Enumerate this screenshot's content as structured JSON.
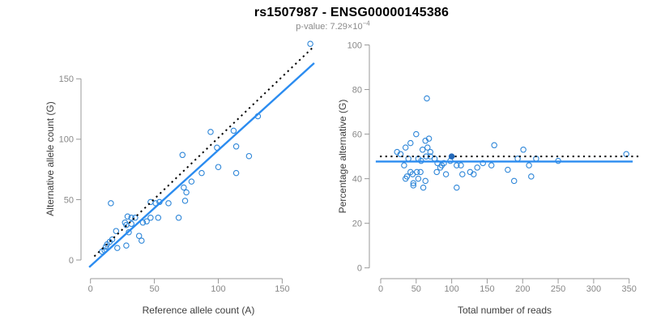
{
  "header": {
    "title": "rs1507987 - ENSG00000145386",
    "subtitle_text": "p-value: 7.29×10",
    "subtitle_exponent": "−4"
  },
  "colors": {
    "point": "#2e86d8",
    "fit_line": "#2b8cf0",
    "identity_line": "#000000",
    "axis": "#999999",
    "tick_label": "#878787",
    "axis_title": "#3d3d3d",
    "subtitle": "#8a8a8a",
    "highlight_point": "#2468b8"
  },
  "chart_data": [
    {
      "type": "scatter",
      "name": "reference-vs-alternative-counts",
      "xlabel": "Reference allele count (A)",
      "ylabel": "Alternative allele count (G)",
      "xticks": [
        0,
        50,
        100,
        150
      ],
      "yticks": [
        0,
        50,
        100,
        150
      ],
      "xlim": [
        0,
        175
      ],
      "ylim": [
        0,
        180
      ],
      "grid": false,
      "legend": null,
      "points": [
        [
          9,
          7
        ],
        [
          11,
          8
        ],
        [
          12,
          11
        ],
        [
          13,
          13
        ],
        [
          15,
          15
        ],
        [
          17,
          17
        ],
        [
          21,
          10
        ],
        [
          28,
          12
        ],
        [
          38,
          20
        ],
        [
          40,
          16
        ],
        [
          20,
          24
        ],
        [
          30,
          23
        ],
        [
          29,
          36
        ],
        [
          32,
          35
        ],
        [
          35,
          35
        ],
        [
          27,
          31
        ],
        [
          28,
          29
        ],
        [
          32,
          30
        ],
        [
          41,
          31
        ],
        [
          44,
          32
        ],
        [
          47,
          35
        ],
        [
          53,
          35
        ],
        [
          69,
          35
        ],
        [
          16,
          47
        ],
        [
          47,
          48
        ],
        [
          51,
          47
        ],
        [
          54,
          48
        ],
        [
          61,
          47
        ],
        [
          73,
          60
        ],
        [
          75,
          56
        ],
        [
          74,
          49
        ],
        [
          79,
          65
        ],
        [
          72,
          87
        ],
        [
          87,
          72
        ],
        [
          94,
          106
        ],
        [
          99,
          93
        ],
        [
          100,
          77
        ],
        [
          112,
          107
        ],
        [
          114,
          94
        ],
        [
          114,
          72
        ],
        [
          124,
          86
        ],
        [
          131,
          119
        ],
        [
          172,
          179
        ]
      ],
      "highlight_point": null,
      "lines": [
        {
          "name": "identity-line",
          "style": "dotted",
          "color": "#000000",
          "points": [
            [
              3,
              3
            ],
            [
              174,
              176
            ]
          ]
        },
        {
          "name": "fit-line",
          "style": "solid",
          "color": "#2b8cf0",
          "points": [
            [
              -1,
              -6
            ],
            [
              175,
              163
            ]
          ]
        }
      ]
    },
    {
      "type": "scatter",
      "name": "total-reads-vs-percentage",
      "xlabel": "Total number of reads",
      "ylabel": "Percentage alternative (G)",
      "xticks": [
        0,
        50,
        100,
        150,
        200,
        250,
        300,
        350
      ],
      "yticks": [
        0,
        20,
        40,
        60,
        80,
        100
      ],
      "xlim": [
        0,
        363
      ],
      "ylim": [
        0,
        100
      ],
      "grid": false,
      "legend": null,
      "points": [
        [
          23,
          52
        ],
        [
          28,
          51
        ],
        [
          33,
          46
        ],
        [
          35,
          54
        ],
        [
          35,
          40
        ],
        [
          37,
          41
        ],
        [
          39,
          49
        ],
        [
          42,
          56
        ],
        [
          42,
          43
        ],
        [
          45,
          42
        ],
        [
          46,
          38
        ],
        [
          46,
          37
        ],
        [
          50,
          60
        ],
        [
          51,
          43
        ],
        [
          53,
          49
        ],
        [
          53,
          40
        ],
        [
          56,
          43
        ],
        [
          57,
          48
        ],
        [
          59,
          53
        ],
        [
          60,
          36
        ],
        [
          63,
          57
        ],
        [
          63,
          39
        ],
        [
          64,
          50
        ],
        [
          65,
          76
        ],
        [
          66,
          54
        ],
        [
          68,
          58
        ],
        [
          70,
          52
        ],
        [
          70,
          50
        ],
        [
          76,
          49
        ],
        [
          79,
          43
        ],
        [
          80,
          47
        ],
        [
          84,
          45
        ],
        [
          86,
          46
        ],
        [
          89,
          47
        ],
        [
          92,
          42
        ],
        [
          98,
          48
        ],
        [
          107,
          46
        ],
        [
          107,
          36
        ],
        [
          113,
          46
        ],
        [
          115,
          42
        ],
        [
          126,
          43
        ],
        [
          131,
          42
        ],
        [
          136,
          45
        ],
        [
          144,
          47
        ],
        [
          156,
          46
        ],
        [
          160,
          55
        ],
        [
          179,
          44
        ],
        [
          188,
          39
        ],
        [
          193,
          49
        ],
        [
          201,
          53
        ],
        [
          209,
          46
        ],
        [
          212,
          41
        ],
        [
          219,
          49
        ],
        [
          250,
          48
        ],
        [
          346,
          51
        ]
      ],
      "highlight_point": [
        100,
        50
      ],
      "lines": [
        {
          "name": "null-line",
          "style": "dotted",
          "color": "#000000",
          "points": [
            [
              -1,
              50
            ],
            [
              363,
              50
            ]
          ]
        },
        {
          "name": "fit-line",
          "style": "solid",
          "color": "#2b8cf0",
          "points": [
            [
              -7,
              47.7
            ],
            [
              355,
              47.7
            ]
          ]
        }
      ]
    }
  ]
}
